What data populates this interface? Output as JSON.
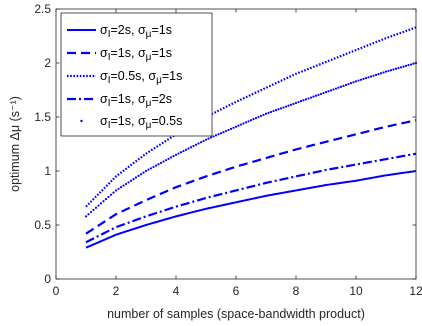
{
  "chart_data": {
    "type": "line",
    "title": "",
    "xlabel": "number of samples (space-bandwidth product)",
    "ylabel": "optimum Δμ (s⁻¹)",
    "xlim": [
      0,
      12
    ],
    "ylim": [
      0,
      2.5
    ],
    "xticks": [
      "0",
      "2",
      "4",
      "6",
      "8",
      "10",
      "12"
    ],
    "yticks": [
      "0",
      "0.5",
      "1",
      "1.5",
      "2",
      "2.5"
    ],
    "grid": false,
    "legend_position": "top-left",
    "series_color": "#0000ff",
    "x": [
      1,
      2,
      3,
      4,
      5,
      6,
      7,
      8,
      9,
      10,
      11,
      12
    ],
    "series": [
      {
        "name": "σI=2s, σμ=1s",
        "name_parts": [
          "σ",
          "I",
          "=2s, σ",
          "μ",
          "=1s"
        ],
        "style": "solid",
        "values": [
          0.29,
          0.41,
          0.5,
          0.58,
          0.65,
          0.71,
          0.77,
          0.82,
          0.87,
          0.91,
          0.96,
          1.0
        ]
      },
      {
        "name": "σI=1s, σμ=1s",
        "name_parts": [
          "σ",
          "I",
          "=1s, σ",
          "μ",
          "=1s"
        ],
        "style": "dashed",
        "values": [
          0.42,
          0.6,
          0.73,
          0.85,
          0.95,
          1.04,
          1.12,
          1.2,
          1.27,
          1.34,
          1.41,
          1.47
        ]
      },
      {
        "name": "σI=0.5s, σμ=1s",
        "name_parts": [
          "σ",
          "I",
          "=0.5s, σ",
          "μ",
          "=1s"
        ],
        "style": "dotted",
        "values": [
          0.67,
          0.95,
          1.16,
          1.34,
          1.5,
          1.64,
          1.77,
          1.9,
          2.01,
          2.12,
          2.23,
          2.33
        ]
      },
      {
        "name": "σI=1s, σμ=2s",
        "name_parts": [
          "σ",
          "I",
          "=1s, σ",
          "μ",
          "=2s"
        ],
        "style": "dashdot",
        "values": [
          0.34,
          0.48,
          0.58,
          0.67,
          0.75,
          0.82,
          0.89,
          0.95,
          1.01,
          1.06,
          1.11,
          1.16
        ]
      },
      {
        "name": "σI=1s, σμ=0.5s",
        "name_parts": [
          "σ",
          "I",
          "=1s, σ",
          "μ",
          "=0.5s"
        ],
        "style": "points",
        "values": [
          0.58,
          0.82,
          1.0,
          1.15,
          1.29,
          1.41,
          1.53,
          1.63,
          1.73,
          1.83,
          1.92,
          2.0
        ]
      }
    ]
  }
}
